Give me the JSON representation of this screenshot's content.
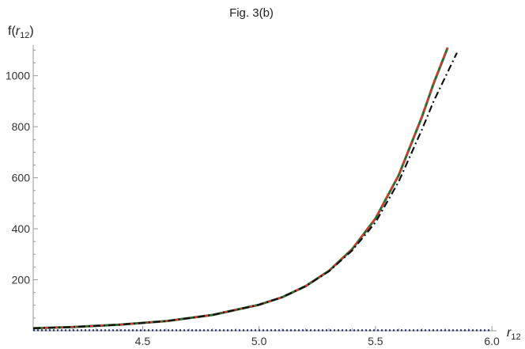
{
  "chart_data": {
    "type": "line",
    "title": "Fig. 3(b)",
    "xlabel": "r_12",
    "ylabel": "f(r_12)",
    "xlim": [
      4.03,
      6.02
    ],
    "ylim": [
      0,
      1120
    ],
    "x_ticks": [
      4.5,
      5.0,
      5.5,
      6.0
    ],
    "x_tick_labels": [
      "4.5",
      "5.0",
      "5.5",
      "6.0"
    ],
    "y_ticks": [
      200,
      400,
      600,
      800,
      1000
    ],
    "y_tick_labels": [
      "200",
      "400",
      "600",
      "800",
      "1000"
    ],
    "grid": false,
    "legend": "none",
    "series": [
      {
        "style": "solid",
        "color": "#2f6b2f",
        "x": [
          4.03,
          4.2,
          4.4,
          4.6,
          4.8,
          5.0,
          5.1,
          5.2,
          5.3,
          5.4,
          5.5,
          5.6,
          5.7,
          5.75,
          5.81
        ],
        "y": [
          10,
          15,
          24,
          38,
          62,
          102,
          132,
          175,
          235,
          320,
          440,
          610,
          840,
          970,
          1110
        ]
      },
      {
        "style": "dashed",
        "color": "#e8312a",
        "x": [
          4.03,
          4.2,
          4.4,
          4.6,
          4.8,
          5.0,
          5.1,
          5.2,
          5.3,
          5.4,
          5.5,
          5.6,
          5.7,
          5.75,
          5.81
        ],
        "y": [
          10,
          15,
          24,
          38,
          62,
          102,
          132,
          175,
          235,
          320,
          440,
          610,
          840,
          970,
          1110
        ]
      },
      {
        "style": "dashdot",
        "color": "#111111",
        "x": [
          4.03,
          4.2,
          4.4,
          4.6,
          4.8,
          5.0,
          5.1,
          5.2,
          5.3,
          5.4,
          5.5,
          5.6,
          5.7,
          5.75,
          5.85
        ],
        "y": [
          10,
          15,
          24,
          38,
          62,
          102,
          132,
          175,
          233,
          315,
          425,
          585,
          790,
          900,
          1090
        ]
      },
      {
        "style": "dotted",
        "color": "#1a237e",
        "x": [
          4.03,
          4.5,
          5.0,
          5.5,
          6.0
        ],
        "y": [
          2,
          2,
          2,
          2,
          2
        ]
      }
    ]
  }
}
